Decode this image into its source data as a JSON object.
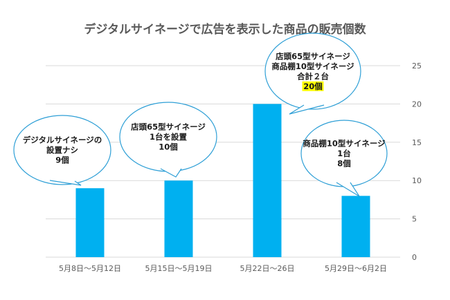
{
  "chart_data": {
    "type": "bar",
    "title": "デジタルサイネージで広告を表示した商品の販売個数",
    "xlabel": "",
    "ylabel": "",
    "categories": [
      "5月8日～5月12日",
      "5月15日～5月19日",
      "5月22日～26日",
      "5月29日～6月2日"
    ],
    "values": [
      9,
      10,
      20,
      8
    ],
    "ylim": [
      0,
      25
    ],
    "yticks": [
      0,
      5,
      10,
      15,
      20,
      25
    ],
    "y_axis_side": "right",
    "grid": true,
    "legend": "none",
    "colors": {
      "bar": "#00b0f0",
      "callout_border": "#2e9fd6",
      "highlight": "#ffff00",
      "grid": "#d9d9d9",
      "text": "#595959"
    },
    "annotations": [
      {
        "lines": [
          "デジタルサイネージの",
          "設置ナシ",
          "9個"
        ],
        "highlight_last": false
      },
      {
        "lines": [
          "店頭65型サイネージ",
          "1台を設置",
          "10個"
        ],
        "highlight_last": false
      },
      {
        "lines": [
          "店頭65型サイネージ",
          "商品棚10型サイネージ",
          "合計２台",
          "20個"
        ],
        "highlight_last": true
      },
      {
        "lines": [
          "商品棚10型サイネージ",
          "1台",
          "8個"
        ],
        "highlight_last": false
      }
    ]
  }
}
